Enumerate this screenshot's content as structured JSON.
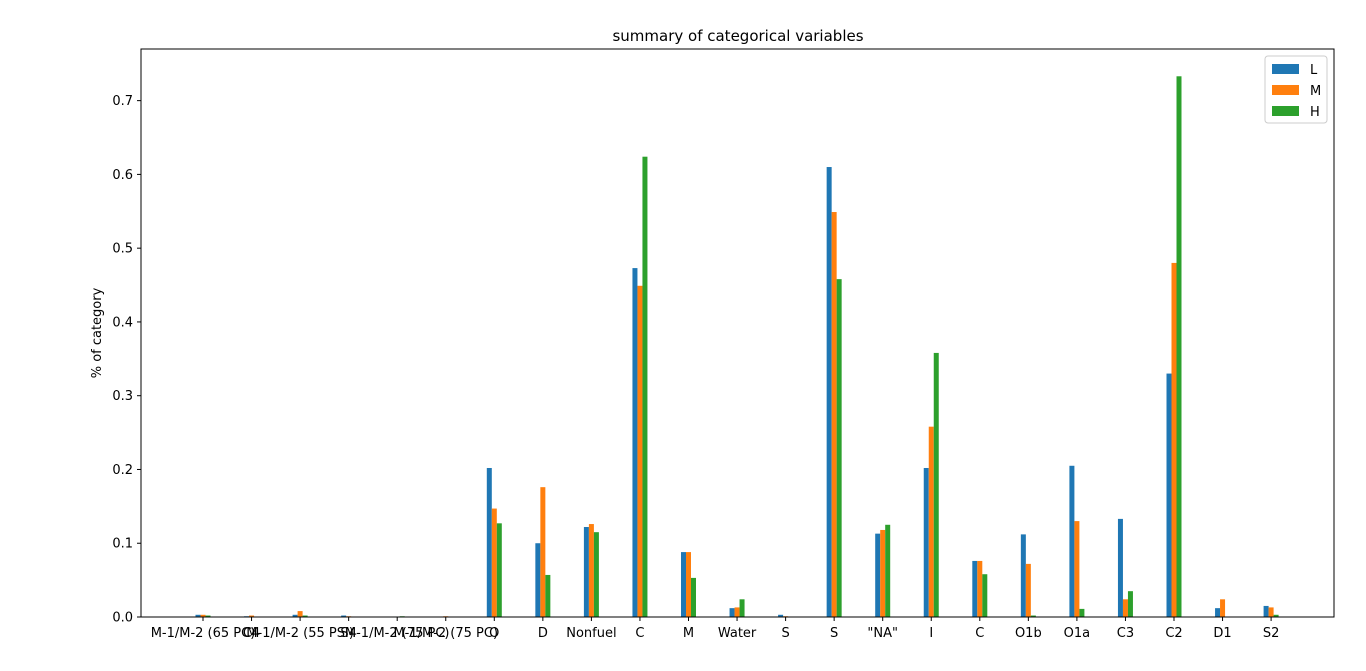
{
  "chart_data": {
    "type": "bar",
    "title": "summary of categorical variables",
    "xlabel": "",
    "ylabel": "% of category",
    "ylim": [
      0,
      0.77
    ],
    "yticks": [
      0.0,
      0.1,
      0.2,
      0.3,
      0.4,
      0.5,
      0.6,
      0.7
    ],
    "ytick_labels": [
      "0.0",
      "0.1",
      "0.2",
      "0.3",
      "0.4",
      "0.5",
      "0.6",
      "0.7"
    ],
    "grid": false,
    "legend_position": "top-right",
    "categories": [
      "M-1/M-2 (65 PC)",
      "C4",
      "M-1/M-2 (55 PSI)",
      "S4",
      "M-1/M-2 (75 PC)",
      "M-1/M-2 (75 PC)",
      "O",
      "D",
      "Nonfuel",
      "C",
      "M",
      "Water",
      "S",
      "S",
      "\"NA\"",
      "I",
      "C",
      "O1b",
      "O1a",
      "C3",
      "C2",
      "D1",
      "S2"
    ],
    "series": [
      {
        "name": "L",
        "color": "#1f77b4",
        "values": [
          0.003,
          0.001,
          0.003,
          0.002,
          0.0,
          0.0,
          0.202,
          0.1,
          0.122,
          0.473,
          0.088,
          0.012,
          0.003,
          0.61,
          0.113,
          0.202,
          0.076,
          0.112,
          0.205,
          0.133,
          0.33,
          0.012,
          0.015
        ]
      },
      {
        "name": "M",
        "color": "#ff7f0e",
        "values": [
          0.003,
          0.002,
          0.008,
          0.001,
          0.0,
          0.001,
          0.147,
          0.176,
          0.126,
          0.449,
          0.088,
          0.013,
          0.001,
          0.549,
          0.118,
          0.258,
          0.076,
          0.072,
          0.13,
          0.024,
          0.48,
          0.024,
          0.013
        ]
      },
      {
        "name": "H",
        "color": "#2ca02c",
        "values": [
          0.002,
          0.0,
          0.002,
          0.0,
          0.001,
          0.0,
          0.127,
          0.057,
          0.115,
          0.624,
          0.053,
          0.024,
          0.0,
          0.458,
          0.125,
          0.358,
          0.058,
          0.002,
          0.011,
          0.035,
          0.733,
          0.0,
          0.003
        ]
      }
    ]
  }
}
